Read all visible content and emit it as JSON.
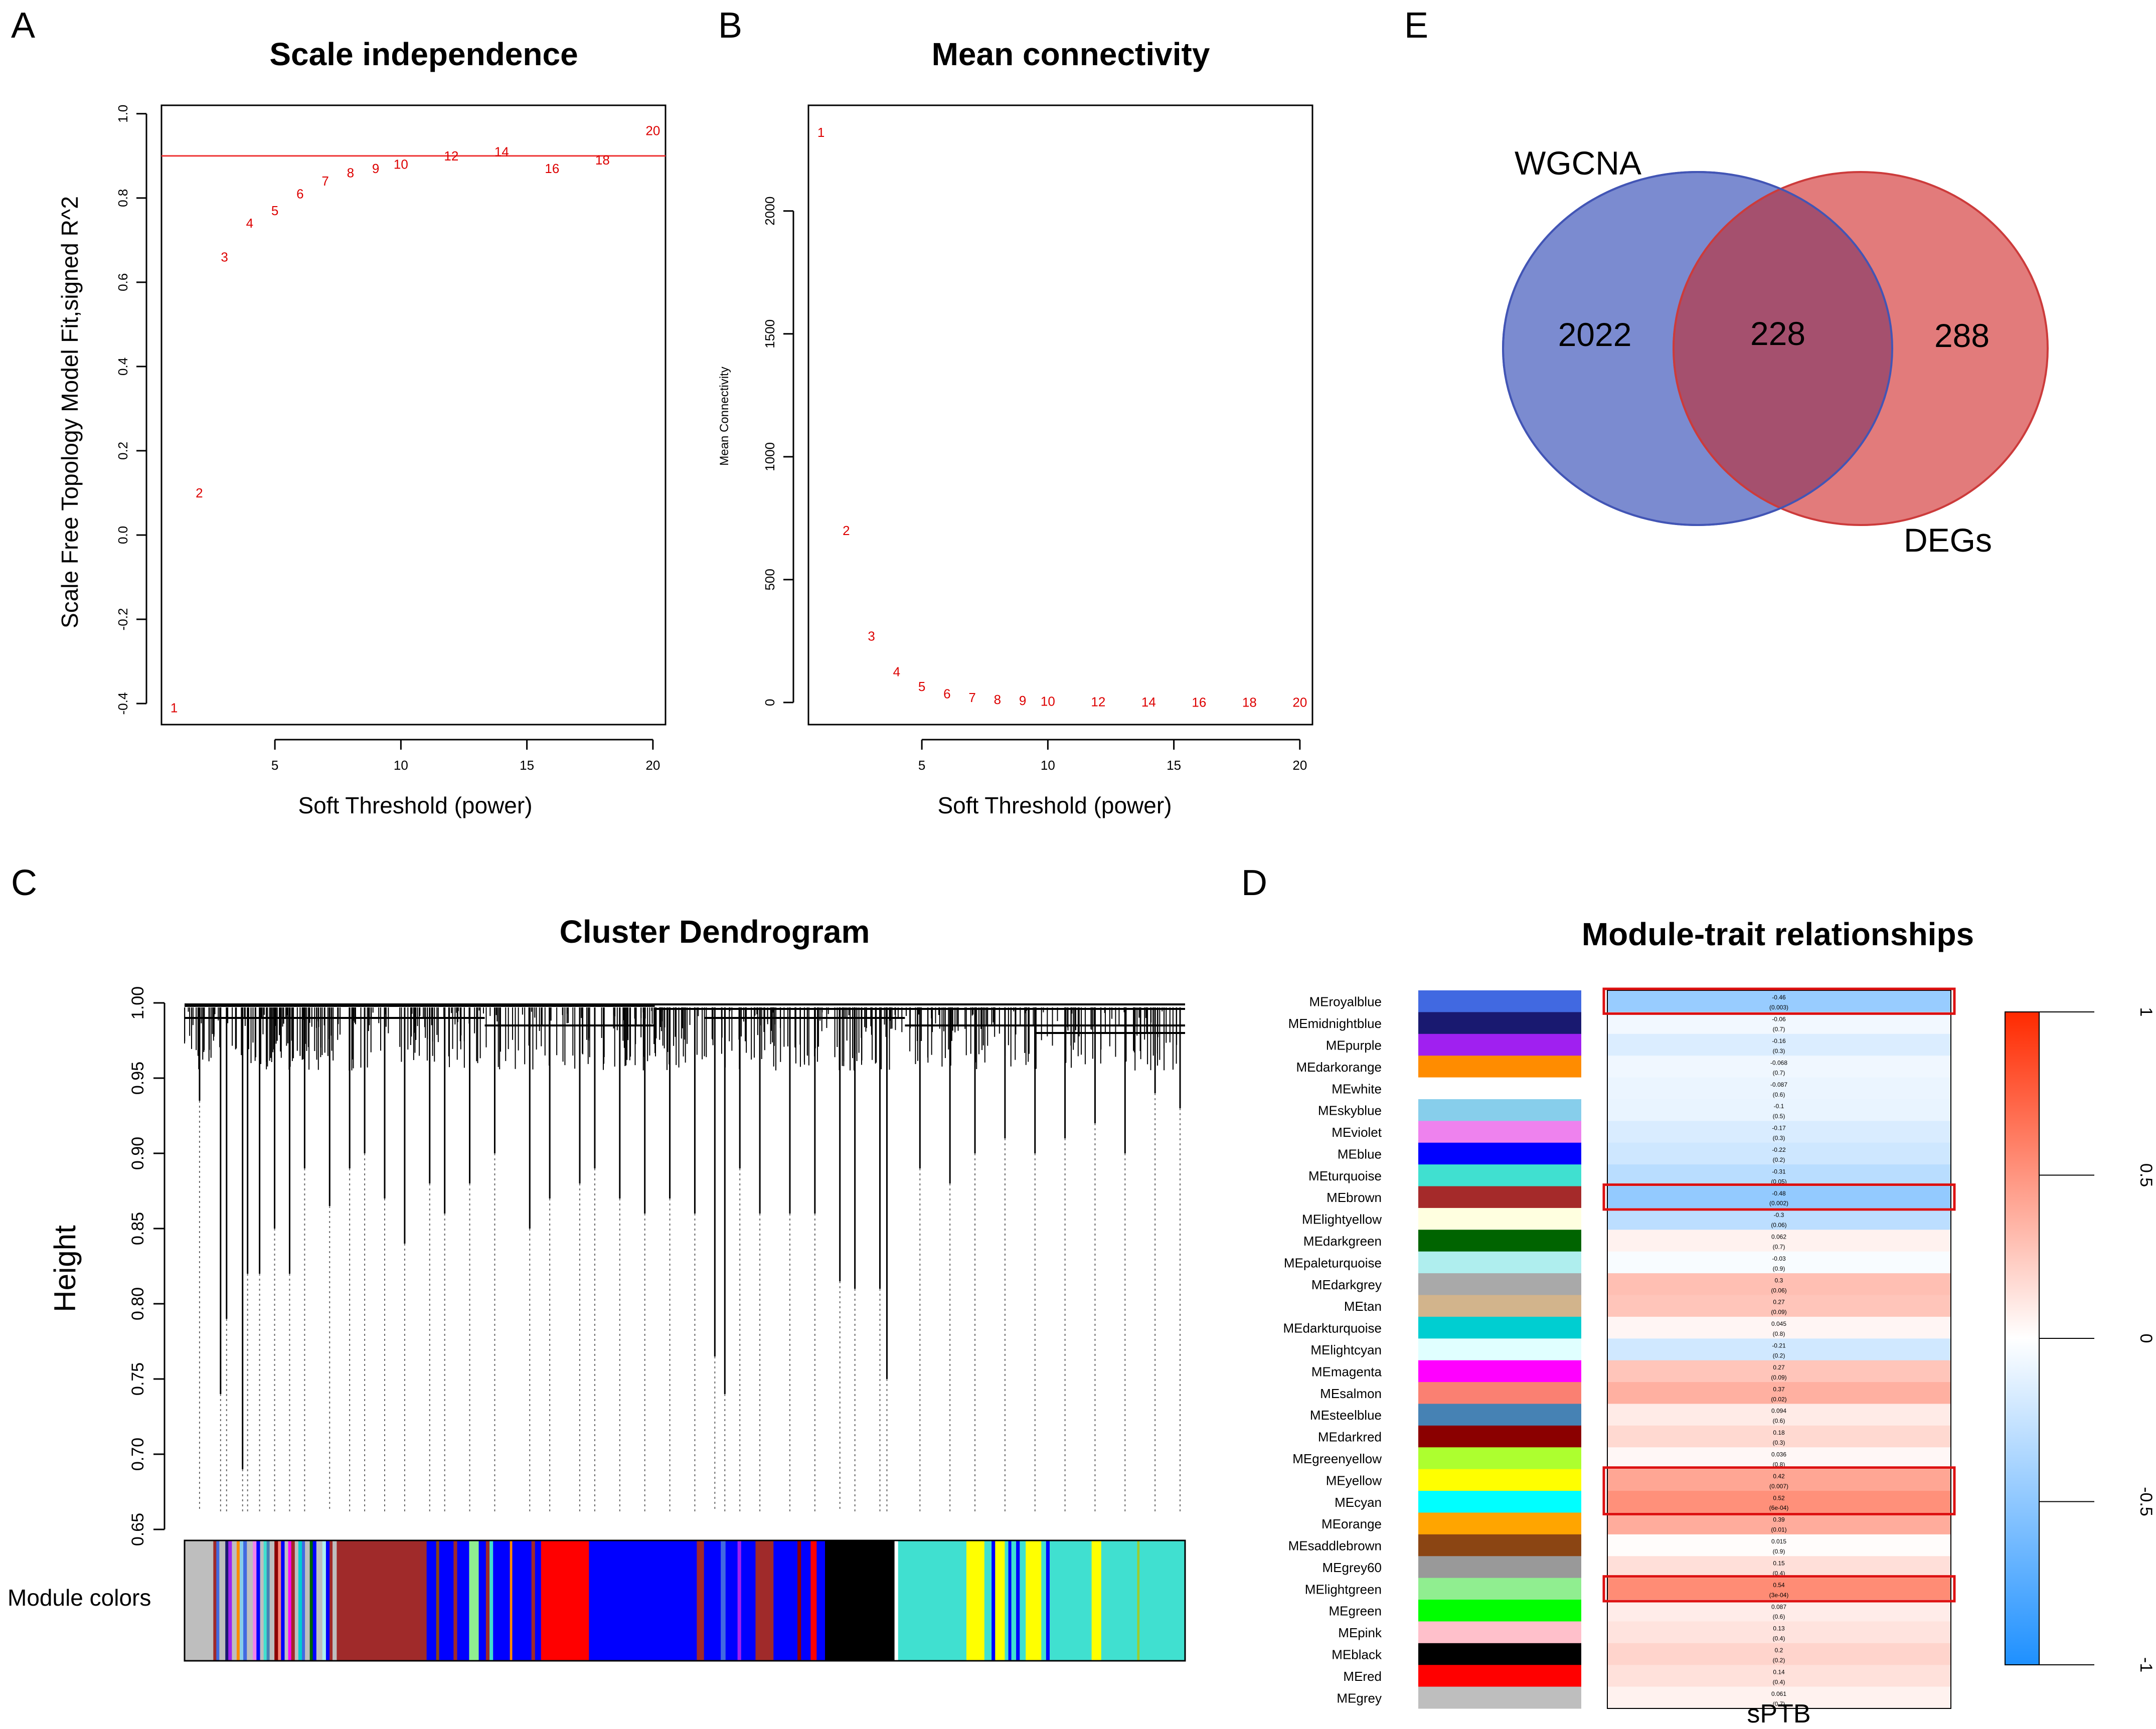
{
  "colors": {
    "marker": "#dd0000",
    "ref_line": "#ee3333",
    "highlight_box": "#dd1111",
    "wgcna_fill": "#7b8bd0",
    "wgcna_stroke": "#4255b5",
    "degs_fill": "#e27b7b",
    "degs_stroke": "#cc3b3b",
    "overlap_fill": "#a5506e",
    "heat_neg": "#1e90ff",
    "heat_pos": "#ff2a00"
  },
  "panels": {
    "A": {
      "letter": "A",
      "title": "Scale independence"
    },
    "B": {
      "letter": "B",
      "title": "Mean connectivity"
    },
    "C": {
      "letter": "C",
      "title": "Cluster Dendrogram",
      "ylabel": "Height",
      "module_label": "Module colors"
    },
    "D": {
      "letter": "D",
      "title": "Module-trait relationships",
      "xlabel": "sPTB"
    },
    "E": {
      "letter": "E"
    }
  },
  "chart_data": [
    {
      "id": "A",
      "type": "scatter",
      "title": "Scale independence",
      "xlabel": "Soft Threshold (power)",
      "ylabel": "Scale Free Topology Model Fit,signed R^2",
      "xlim": [
        0.5,
        20.5
      ],
      "ylim": [
        -0.45,
        1.02
      ],
      "xticks": [
        5,
        10,
        15,
        20
      ],
      "yticks": [
        -0.4,
        -0.2,
        0.0,
        0.2,
        0.4,
        0.6,
        0.8,
        1.0
      ],
      "ytick_labels": [
        "-0.4",
        "-0.2",
        "0.0",
        "0.2",
        "0.4",
        "0.6",
        "0.8",
        "1.0"
      ],
      "hline": 0.9,
      "points": [
        {
          "x": 1,
          "y": -0.41,
          "label": "1"
        },
        {
          "x": 2,
          "y": 0.1,
          "label": "2"
        },
        {
          "x": 3,
          "y": 0.66,
          "label": "3"
        },
        {
          "x": 4,
          "y": 0.74,
          "label": "4"
        },
        {
          "x": 5,
          "y": 0.77,
          "label": "5"
        },
        {
          "x": 6,
          "y": 0.81,
          "label": "6"
        },
        {
          "x": 7,
          "y": 0.84,
          "label": "7"
        },
        {
          "x": 8,
          "y": 0.86,
          "label": "8"
        },
        {
          "x": 9,
          "y": 0.87,
          "label": "9"
        },
        {
          "x": 10,
          "y": 0.88,
          "label": "10"
        },
        {
          "x": 12,
          "y": 0.9,
          "label": "12"
        },
        {
          "x": 14,
          "y": 0.91,
          "label": "14"
        },
        {
          "x": 16,
          "y": 0.87,
          "label": "16"
        },
        {
          "x": 18,
          "y": 0.89,
          "label": "18"
        },
        {
          "x": 20,
          "y": 0.96,
          "label": "20"
        }
      ]
    },
    {
      "id": "B",
      "type": "scatter",
      "title": "Mean connectivity",
      "xlabel": "Soft Threshold (power)",
      "ylabel": "Mean Connectivity",
      "xlim": [
        0.5,
        20.5
      ],
      "ylim": [
        -90,
        2430
      ],
      "xticks": [
        5,
        10,
        15,
        20
      ],
      "yticks": [
        0,
        500,
        1000,
        1500,
        2000
      ],
      "ytick_labels": [
        "0",
        "500",
        "1000",
        "1500",
        "2000"
      ],
      "points": [
        {
          "x": 1,
          "y": 2320,
          "label": "1"
        },
        {
          "x": 2,
          "y": 700,
          "label": "2"
        },
        {
          "x": 3,
          "y": 270,
          "label": "3"
        },
        {
          "x": 4,
          "y": 125,
          "label": "4"
        },
        {
          "x": 5,
          "y": 65,
          "label": "5"
        },
        {
          "x": 6,
          "y": 35,
          "label": "6"
        },
        {
          "x": 7,
          "y": 20,
          "label": "7"
        },
        {
          "x": 8,
          "y": 12,
          "label": "8"
        },
        {
          "x": 9,
          "y": 8,
          "label": "9"
        },
        {
          "x": 10,
          "y": 5,
          "label": "10"
        },
        {
          "x": 12,
          "y": 3,
          "label": "12"
        },
        {
          "x": 14,
          "y": 2,
          "label": "14"
        },
        {
          "x": 16,
          "y": 1,
          "label": "16"
        },
        {
          "x": 18,
          "y": 1,
          "label": "18"
        },
        {
          "x": 20,
          "y": 1,
          "label": "20"
        }
      ]
    },
    {
      "id": "C",
      "type": "dendrogram",
      "title": "Cluster Dendrogram",
      "ylabel": "Height",
      "ylim": [
        0.65,
        1.0
      ],
      "yticks": [
        0.65,
        0.7,
        0.75,
        0.8,
        0.85,
        0.9,
        0.95,
        1.0
      ],
      "ytick_labels": [
        "0.65",
        "0.70",
        "0.75",
        "0.80",
        "0.85",
        "0.90",
        "0.95",
        "1.00"
      ],
      "module_colors_label": "Module colors",
      "color_segments": [
        {
          "c": "#bebebe",
          "w": 2.4
        },
        {
          "c": "#a02a2a",
          "w": 0.25
        },
        {
          "c": "#4169e1",
          "w": 0.25
        },
        {
          "c": "#bebebe",
          "w": 0.5
        },
        {
          "c": "#191970",
          "w": 0.25
        },
        {
          "c": "#a020f0",
          "w": 0.3
        },
        {
          "c": "#bebebe",
          "w": 0.4
        },
        {
          "c": "#ff8c00",
          "w": 0.25
        },
        {
          "c": "#87ceeb",
          "w": 0.3
        },
        {
          "c": "#4169e1",
          "w": 0.3
        },
        {
          "c": "#bebebe",
          "w": 0.5
        },
        {
          "c": "#ee82ee",
          "w": 0.3
        },
        {
          "c": "#0000ff",
          "w": 0.3
        },
        {
          "c": "#bebebe",
          "w": 0.3
        },
        {
          "c": "#40e0d0",
          "w": 0.25
        },
        {
          "c": "#4682b4",
          "w": 0.25
        },
        {
          "c": "#bebebe",
          "w": 0.4
        },
        {
          "c": "#8b0000",
          "w": 0.3
        },
        {
          "c": "#fa8072",
          "w": 0.25
        },
        {
          "c": "#0000ff",
          "w": 0.3
        },
        {
          "c": "#bebebe",
          "w": 0.3
        },
        {
          "c": "#ff00ff",
          "w": 0.25
        },
        {
          "c": "#a02a2a",
          "w": 0.3
        },
        {
          "c": "#bebebe",
          "w": 0.3
        },
        {
          "c": "#00ced1",
          "w": 0.3
        },
        {
          "c": "#4169e1",
          "w": 0.25
        },
        {
          "c": "#bebebe",
          "w": 0.4
        },
        {
          "c": "#006400",
          "w": 0.25
        },
        {
          "c": "#0000ff",
          "w": 0.3
        },
        {
          "c": "#bebebe",
          "w": 0.5
        },
        {
          "c": "#afeeee",
          "w": 0.3
        },
        {
          "c": "#0000ff",
          "w": 0.3
        },
        {
          "c": "#a02a2a",
          "w": 0.25
        },
        {
          "c": "#bebebe",
          "w": 0.35
        },
        {
          "c": "#a02a2a",
          "w": 7.5
        },
        {
          "c": "#0000ff",
          "w": 0.8
        },
        {
          "c": "#8b4513",
          "w": 0.25
        },
        {
          "c": "#0000ff",
          "w": 1.2
        },
        {
          "c": "#a02a2a",
          "w": 0.3
        },
        {
          "c": "#0000ff",
          "w": 1.0
        },
        {
          "c": "#90ee90",
          "w": 0.8
        },
        {
          "c": "#0000ff",
          "w": 0.6
        },
        {
          "c": "#a02a2a",
          "w": 0.3
        },
        {
          "c": "#40e0d0",
          "w": 0.3
        },
        {
          "c": "#0000ff",
          "w": 1.4
        },
        {
          "c": "#ff8c00",
          "w": 0.2
        },
        {
          "c": "#0000ff",
          "w": 1.6
        },
        {
          "c": "#a02a2a",
          "w": 0.3
        },
        {
          "c": "#0000ff",
          "w": 0.5
        },
        {
          "c": "#ff0000",
          "w": 4.0
        },
        {
          "c": "#0000ff",
          "w": 9.0
        },
        {
          "c": "#a02a2a",
          "w": 0.6
        },
        {
          "c": "#0000ff",
          "w": 1.4
        },
        {
          "c": "#4169e1",
          "w": 0.4
        },
        {
          "c": "#0000ff",
          "w": 1.0
        },
        {
          "c": "#a020f0",
          "w": 0.3
        },
        {
          "c": "#0000ff",
          "w": 1.2
        },
        {
          "c": "#a02a2a",
          "w": 1.5
        },
        {
          "c": "#0000ff",
          "w": 2.0
        },
        {
          "c": "#8b0000",
          "w": 0.3
        },
        {
          "c": "#0000ff",
          "w": 0.8
        },
        {
          "c": "#ff0000",
          "w": 0.5
        },
        {
          "c": "#0000ff",
          "w": 0.7
        },
        {
          "c": "#000000",
          "w": 5.8
        },
        {
          "c": "#ffffff",
          "w": 0.3
        },
        {
          "c": "#40e0d0",
          "w": 5.7
        },
        {
          "c": "#ffff00",
          "w": 1.5
        },
        {
          "c": "#40e0d0",
          "w": 0.6
        },
        {
          "c": "#0000ff",
          "w": 0.3
        },
        {
          "c": "#ffff00",
          "w": 0.8
        },
        {
          "c": "#40e0d0",
          "w": 0.3
        },
        {
          "c": "#0000ff",
          "w": 0.25
        },
        {
          "c": "#40e0d0",
          "w": 0.4
        },
        {
          "c": "#0000ff",
          "w": 0.3
        },
        {
          "c": "#40e0d0",
          "w": 0.5
        },
        {
          "c": "#ffff00",
          "w": 1.3
        },
        {
          "c": "#40e0d0",
          "w": 0.4
        },
        {
          "c": "#0000ff",
          "w": 0.3
        },
        {
          "c": "#40e0d0",
          "w": 3.5
        },
        {
          "c": "#ffff00",
          "w": 0.8
        },
        {
          "c": "#40e0d0",
          "w": 3.0
        },
        {
          "c": "#9acd32",
          "w": 0.2
        },
        {
          "c": "#40e0d0",
          "w": 3.8
        }
      ],
      "branches": [
        {
          "pos": 1.5,
          "tip": 0.935
        },
        {
          "pos": 3.6,
          "tip": 0.74
        },
        {
          "pos": 4.2,
          "tip": 0.79
        },
        {
          "pos": 5.8,
          "tip": 0.69
        },
        {
          "pos": 6.3,
          "tip": 0.82
        },
        {
          "pos": 7.5,
          "tip": 0.82
        },
        {
          "pos": 9.0,
          "tip": 0.85
        },
        {
          "pos": 10.5,
          "tip": 0.82
        },
        {
          "pos": 12.0,
          "tip": 0.89
        },
        {
          "pos": 14.5,
          "tip": 0.865
        },
        {
          "pos": 16.5,
          "tip": 0.89
        },
        {
          "pos": 18.0,
          "tip": 0.9
        },
        {
          "pos": 20.0,
          "tip": 0.87
        },
        {
          "pos": 22.0,
          "tip": 0.84
        },
        {
          "pos": 24.5,
          "tip": 0.88
        },
        {
          "pos": 26.0,
          "tip": 0.86
        },
        {
          "pos": 28.5,
          "tip": 0.88
        },
        {
          "pos": 31.0,
          "tip": 0.9
        },
        {
          "pos": 34.5,
          "tip": 0.85
        },
        {
          "pos": 36.5,
          "tip": 0.87
        },
        {
          "pos": 39.5,
          "tip": 0.88
        },
        {
          "pos": 41.0,
          "tip": 0.89
        },
        {
          "pos": 43.5,
          "tip": 0.87
        },
        {
          "pos": 46.0,
          "tip": 0.86
        },
        {
          "pos": 48.5,
          "tip": 0.87
        },
        {
          "pos": 51.0,
          "tip": 0.86
        },
        {
          "pos": 53.0,
          "tip": 0.765
        },
        {
          "pos": 54.0,
          "tip": 0.74
        },
        {
          "pos": 55.5,
          "tip": 0.89
        },
        {
          "pos": 57.5,
          "tip": 0.86
        },
        {
          "pos": 60.5,
          "tip": 0.86
        },
        {
          "pos": 63.0,
          "tip": 0.86
        },
        {
          "pos": 65.5,
          "tip": 0.815
        },
        {
          "pos": 67.0,
          "tip": 0.81
        },
        {
          "pos": 69.5,
          "tip": 0.81
        },
        {
          "pos": 70.2,
          "tip": 0.75
        },
        {
          "pos": 73.5,
          "tip": 0.89
        },
        {
          "pos": 76.5,
          "tip": 0.88
        },
        {
          "pos": 79.0,
          "tip": 0.9
        },
        {
          "pos": 82.0,
          "tip": 0.91
        },
        {
          "pos": 85.0,
          "tip": 0.9
        },
        {
          "pos": 88.0,
          "tip": 0.91
        },
        {
          "pos": 91.0,
          "tip": 0.92
        },
        {
          "pos": 94.0,
          "tip": 0.9
        },
        {
          "pos": 97.0,
          "tip": 0.94
        },
        {
          "pos": 99.5,
          "tip": 0.93
        }
      ]
    },
    {
      "id": "D",
      "type": "heatmap",
      "title": "Module-trait relationships",
      "xlabel": "sPTB",
      "scale": [
        -1,
        1
      ],
      "legend_ticks": [
        "1",
        "0.5",
        "0",
        "-0.5",
        "-1"
      ],
      "legend_tick_values": [
        1,
        0.5,
        0,
        -0.5,
        -1
      ],
      "highlighted": [
        "MEroyalblue",
        "MEbrown",
        "MEyellow",
        "MEcyan",
        "MElightgreen"
      ],
      "rows": [
        {
          "name": "MEroyalblue",
          "color": "#4169e1",
          "r": -0.46,
          "corr": "-0.46",
          "p": "(0.003)"
        },
        {
          "name": "MEmidnightblue",
          "color": "#191970",
          "r": -0.06,
          "corr": "-0.06",
          "p": "(0.7)"
        },
        {
          "name": "MEpurple",
          "color": "#a020f0",
          "r": -0.16,
          "corr": "-0.16",
          "p": "(0.3)"
        },
        {
          "name": "MEdarkorange",
          "color": "#ff8c00",
          "r": -0.068,
          "corr": "-0.068",
          "p": "(0.7)"
        },
        {
          "name": "MEwhite",
          "color": "#ffffff",
          "r": -0.087,
          "corr": "-0.087",
          "p": "(0.6)"
        },
        {
          "name": "MEskyblue",
          "color": "#87ceeb",
          "r": -0.1,
          "corr": "-0.1",
          "p": "(0.5)"
        },
        {
          "name": "MEviolet",
          "color": "#ee82ee",
          "r": -0.17,
          "corr": "-0.17",
          "p": "(0.3)"
        },
        {
          "name": "MEblue",
          "color": "#0000ff",
          "r": -0.22,
          "corr": "-0.22",
          "p": "(0.2)"
        },
        {
          "name": "MEturquoise",
          "color": "#40e0d0",
          "r": -0.31,
          "corr": "-0.31",
          "p": "(0.05)"
        },
        {
          "name": "MEbrown",
          "color": "#a52a2a",
          "r": -0.48,
          "corr": "-0.48",
          "p": "(0.002)"
        },
        {
          "name": "MElightyellow",
          "color": "#ffffe0",
          "r": -0.3,
          "corr": "-0.3",
          "p": "(0.06)"
        },
        {
          "name": "MEdarkgreen",
          "color": "#006400",
          "r": 0.062,
          "corr": "0.062",
          "p": "(0.7)"
        },
        {
          "name": "MEpaleturquoise",
          "color": "#afeeee",
          "r": -0.03,
          "corr": "-0.03",
          "p": "(0.9)"
        },
        {
          "name": "MEdarkgrey",
          "color": "#a9a9a9",
          "r": 0.3,
          "corr": "0.3",
          "p": "(0.06)"
        },
        {
          "name": "MEtan",
          "color": "#d2b48c",
          "r": 0.27,
          "corr": "0.27",
          "p": "(0.09)"
        },
        {
          "name": "MEdarkturquoise",
          "color": "#00ced1",
          "r": 0.045,
          "corr": "0.045",
          "p": "(0.8)"
        },
        {
          "name": "MElightcyan",
          "color": "#e0ffff",
          "r": -0.21,
          "corr": "-0.21",
          "p": "(0.2)"
        },
        {
          "name": "MEmagenta",
          "color": "#ff00ff",
          "r": 0.27,
          "corr": "0.27",
          "p": "(0.09)"
        },
        {
          "name": "MEsalmon",
          "color": "#fa8072",
          "r": 0.37,
          "corr": "0.37",
          "p": "(0.02)"
        },
        {
          "name": "MEsteelblue",
          "color": "#4682b4",
          "r": 0.094,
          "corr": "0.094",
          "p": "(0.6)"
        },
        {
          "name": "MEdarkred",
          "color": "#8b0000",
          "r": 0.18,
          "corr": "0.18",
          "p": "(0.3)"
        },
        {
          "name": "MEgreenyellow",
          "color": "#adff2f",
          "r": 0.036,
          "corr": "0.036",
          "p": "(0.8)"
        },
        {
          "name": "MEyellow",
          "color": "#ffff00",
          "r": 0.42,
          "corr": "0.42",
          "p": "(0.007)"
        },
        {
          "name": "MEcyan",
          "color": "#00ffff",
          "r": 0.52,
          "corr": "0.52",
          "p": "(6e-04)"
        },
        {
          "name": "MEorange",
          "color": "#ffa500",
          "r": 0.39,
          "corr": "0.39",
          "p": "(0.01)"
        },
        {
          "name": "MEsaddlebrown",
          "color": "#8b4513",
          "r": 0.015,
          "corr": "0.015",
          "p": "(0.9)"
        },
        {
          "name": "MEgrey60",
          "color": "#999999",
          "r": 0.15,
          "corr": "0.15",
          "p": "(0.4)"
        },
        {
          "name": "MElightgreen",
          "color": "#90ee90",
          "r": 0.54,
          "corr": "0.54",
          "p": "(3e-04)"
        },
        {
          "name": "MEgreen",
          "color": "#00ff00",
          "r": 0.087,
          "corr": "0.087",
          "p": "(0.6)"
        },
        {
          "name": "MEpink",
          "color": "#ffc0cb",
          "r": 0.13,
          "corr": "0.13",
          "p": "(0.4)"
        },
        {
          "name": "MEblack",
          "color": "#000000",
          "r": 0.2,
          "corr": "0.2",
          "p": "(0.2)"
        },
        {
          "name": "MEred",
          "color": "#ff0000",
          "r": 0.14,
          "corr": "0.14",
          "p": "(0.4)"
        },
        {
          "name": "MEgrey",
          "color": "#bebebe",
          "r": 0.061,
          "corr": "0.061",
          "p": "(0.7)"
        }
      ]
    },
    {
      "id": "E",
      "type": "venn",
      "sets": [
        {
          "name": "WGCNA",
          "only": "2022"
        },
        {
          "name": "DEGs",
          "only": "288"
        }
      ],
      "intersection": "228"
    }
  ]
}
